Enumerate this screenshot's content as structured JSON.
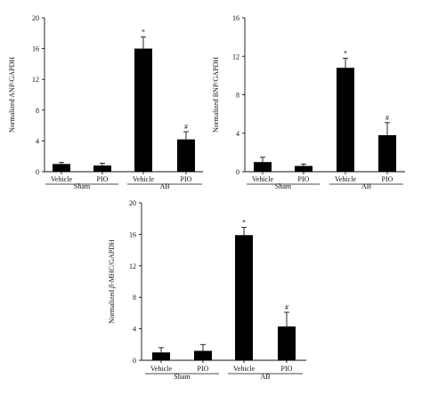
{
  "chart_data": [
    {
      "type": "bar",
      "ylabel": "Normalized ANP/GAPDH",
      "ylim": [
        0,
        20
      ],
      "yticks": [
        0,
        4,
        8,
        12,
        16,
        20
      ],
      "categories": [
        "Vehicle",
        "PIO",
        "Vehicle",
        "PIO"
      ],
      "groups": [
        {
          "label": "Sham",
          "categories": [
            0,
            1
          ]
        },
        {
          "label": "AB",
          "categories": [
            2,
            3
          ]
        }
      ],
      "values": [
        1.0,
        0.8,
        16.0,
        4.2
      ],
      "errors": [
        0.2,
        0.3,
        1.5,
        1.0
      ],
      "annotations": [
        "",
        "",
        "*",
        "#"
      ]
    },
    {
      "type": "bar",
      "ylabel": "Normalized BNP/GAPDH",
      "ylim": [
        0,
        16
      ],
      "yticks": [
        0,
        4,
        8,
        12,
        16
      ],
      "categories": [
        "Vehicle",
        "PIO",
        "Vehicle",
        "PIO"
      ],
      "groups": [
        {
          "label": "Sham",
          "categories": [
            0,
            1
          ]
        },
        {
          "label": "AB",
          "categories": [
            2,
            3
          ]
        }
      ],
      "values": [
        1.0,
        0.6,
        10.8,
        3.8
      ],
      "errors": [
        0.5,
        0.2,
        1.0,
        1.3
      ],
      "annotations": [
        "",
        "",
        "*",
        "#"
      ]
    },
    {
      "type": "bar",
      "ylabel_prefix": "Normalized ",
      "ylabel_symbol": "β",
      "ylabel_suffix": "-MHC/GAPDH",
      "ylim": [
        0,
        20
      ],
      "yticks": [
        0,
        4,
        8,
        12,
        16,
        20
      ],
      "categories": [
        "Vehicle",
        "PIO",
        "Vehicle",
        "PIO"
      ],
      "groups": [
        {
          "label": "Sham",
          "categories": [
            0,
            1
          ]
        },
        {
          "label": "AB",
          "categories": [
            2,
            3
          ]
        }
      ],
      "values": [
        1.0,
        1.2,
        15.9,
        4.3
      ],
      "errors": [
        0.6,
        0.8,
        1.0,
        1.8
      ],
      "annotations": [
        "",
        "",
        "*",
        "#"
      ]
    }
  ]
}
